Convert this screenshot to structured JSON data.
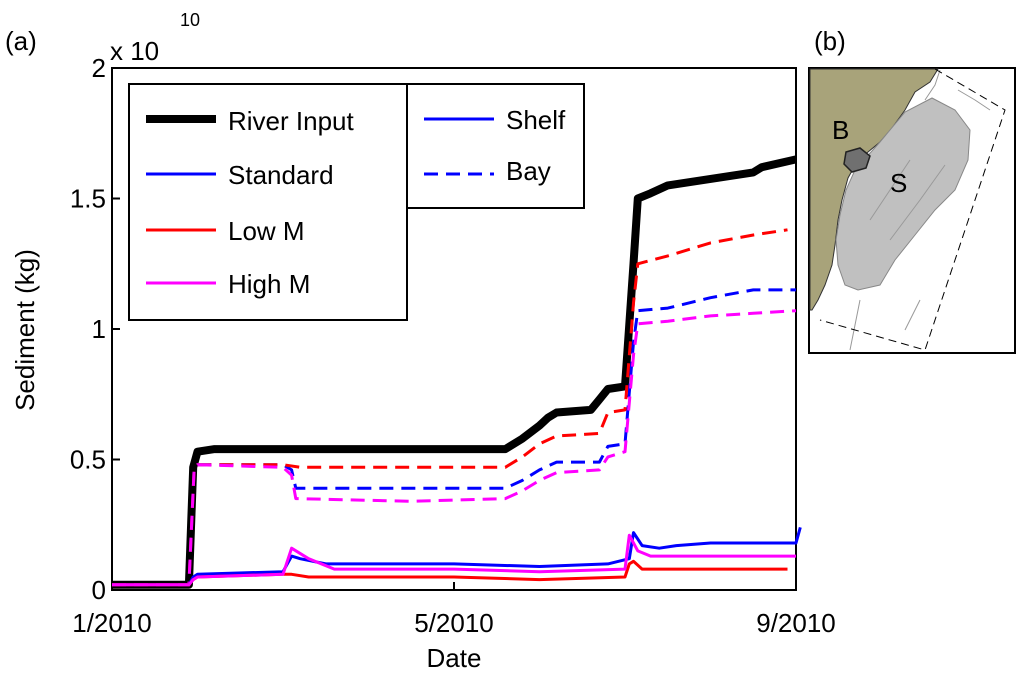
{
  "chart_data": [
    {
      "panel": "(a)",
      "type": "line",
      "title": "",
      "xlabel": "Date",
      "ylabel": "Sediment (kg)",
      "y_multiplier_text": "x 10",
      "y_multiplier_exponent": "10",
      "xlim": [
        0,
        8
      ],
      "ylim": [
        0,
        2
      ],
      "x_ticks": [
        {
          "value": 0,
          "label": "1/2010"
        },
        {
          "value": 4,
          "label": "5/2010"
        },
        {
          "value": 8,
          "label": "9/2010"
        }
      ],
      "y_ticks": [
        {
          "value": 0,
          "label": "0"
        },
        {
          "value": 0.5,
          "label": "0.5"
        },
        {
          "value": 1,
          "label": "1"
        },
        {
          "value": 1.5,
          "label": "1.5"
        },
        {
          "value": 2,
          "label": "2"
        }
      ],
      "x_unit_note": "months since 1 Jan 2010",
      "legend": {
        "placement": "top-left",
        "model_entries": [
          {
            "label": "River Input",
            "color": "#000000",
            "style": "thick-solid"
          },
          {
            "label": "Standard",
            "color": "#0000ff",
            "style": "solid"
          },
          {
            "label": "Low M",
            "color": "#ff0000",
            "style": "solid"
          },
          {
            "label": "High M",
            "color": "#ff00ff",
            "style": "solid"
          }
        ],
        "region_entries": [
          {
            "label": "Shelf",
            "color": "#0000ff",
            "style": "solid"
          },
          {
            "label": "Bay",
            "color": "#0000ff",
            "style": "dashed"
          }
        ]
      },
      "series": [
        {
          "name": "River Input",
          "color": "#000000",
          "style": "thick-solid",
          "points": [
            [
              0,
              0.02
            ],
            [
              0.9,
              0.02
            ],
            [
              0.95,
              0.47
            ],
            [
              1.0,
              0.53
            ],
            [
              1.2,
              0.54
            ],
            [
              4.6,
              0.54
            ],
            [
              4.8,
              0.58
            ],
            [
              5.0,
              0.63
            ],
            [
              5.1,
              0.66
            ],
            [
              5.2,
              0.68
            ],
            [
              5.6,
              0.69
            ],
            [
              5.7,
              0.73
            ],
            [
              5.8,
              0.77
            ],
            [
              6.0,
              0.78
            ],
            [
              6.1,
              1.25
            ],
            [
              6.15,
              1.5
            ],
            [
              6.3,
              1.52
            ],
            [
              6.5,
              1.55
            ],
            [
              7.5,
              1.6
            ],
            [
              7.6,
              1.62
            ],
            [
              8.0,
              1.65
            ]
          ]
        },
        {
          "name": "Standard Bay",
          "color": "#0000ff",
          "style": "dashed",
          "points": [
            [
              0,
              0.02
            ],
            [
              0.9,
              0.02
            ],
            [
              0.96,
              0.46
            ],
            [
              1.0,
              0.48
            ],
            [
              2.0,
              0.48
            ],
            [
              2.1,
              0.46
            ],
            [
              2.15,
              0.39
            ],
            [
              3.5,
              0.39
            ],
            [
              4.6,
              0.39
            ],
            [
              4.8,
              0.42
            ],
            [
              5.0,
              0.46
            ],
            [
              5.2,
              0.49
            ],
            [
              5.7,
              0.49
            ],
            [
              5.8,
              0.55
            ],
            [
              6.0,
              0.56
            ],
            [
              6.1,
              0.95
            ],
            [
              6.15,
              1.07
            ],
            [
              6.5,
              1.08
            ],
            [
              7.0,
              1.12
            ],
            [
              7.5,
              1.15
            ],
            [
              8.0,
              1.15
            ]
          ]
        },
        {
          "name": "Low M Bay",
          "color": "#ff0000",
          "style": "dashed",
          "points": [
            [
              0,
              0.02
            ],
            [
              0.9,
              0.02
            ],
            [
              0.96,
              0.46
            ],
            [
              1.0,
              0.48
            ],
            [
              2.0,
              0.48
            ],
            [
              2.2,
              0.47
            ],
            [
              4.6,
              0.47
            ],
            [
              4.8,
              0.51
            ],
            [
              5.0,
              0.56
            ],
            [
              5.2,
              0.59
            ],
            [
              5.7,
              0.6
            ],
            [
              5.8,
              0.68
            ],
            [
              6.0,
              0.69
            ],
            [
              6.1,
              1.1
            ],
            [
              6.15,
              1.25
            ],
            [
              6.5,
              1.28
            ],
            [
              7.0,
              1.33
            ],
            [
              7.5,
              1.36
            ],
            [
              7.9,
              1.38
            ]
          ]
        },
        {
          "name": "High M Bay",
          "color": "#ff00ff",
          "style": "dashed",
          "points": [
            [
              0,
              0.02
            ],
            [
              0.9,
              0.02
            ],
            [
              0.96,
              0.46
            ],
            [
              1.0,
              0.48
            ],
            [
              2.0,
              0.47
            ],
            [
              2.1,
              0.44
            ],
            [
              2.15,
              0.35
            ],
            [
              3.5,
              0.34
            ],
            [
              4.6,
              0.35
            ],
            [
              4.8,
              0.38
            ],
            [
              5.0,
              0.42
            ],
            [
              5.2,
              0.45
            ],
            [
              5.7,
              0.46
            ],
            [
              5.8,
              0.51
            ],
            [
              6.0,
              0.53
            ],
            [
              6.1,
              0.9
            ],
            [
              6.15,
              1.02
            ],
            [
              6.5,
              1.03
            ],
            [
              7.0,
              1.05
            ],
            [
              7.5,
              1.06
            ],
            [
              8.0,
              1.07
            ]
          ]
        },
        {
          "name": "Standard Shelf",
          "color": "#0000ff",
          "style": "solid",
          "points": [
            [
              0,
              0.02
            ],
            [
              0.9,
              0.02
            ],
            [
              0.95,
              0.05
            ],
            [
              1.0,
              0.06
            ],
            [
              2.0,
              0.07
            ],
            [
              2.1,
              0.13
            ],
            [
              2.2,
              0.12
            ],
            [
              2.5,
              0.1
            ],
            [
              3.0,
              0.1
            ],
            [
              4.0,
              0.1
            ],
            [
              5.0,
              0.09
            ],
            [
              5.8,
              0.1
            ],
            [
              6.05,
              0.12
            ],
            [
              6.1,
              0.22
            ],
            [
              6.2,
              0.17
            ],
            [
              6.4,
              0.16
            ],
            [
              6.6,
              0.17
            ],
            [
              7.0,
              0.18
            ],
            [
              8.0,
              0.18
            ],
            [
              8.05,
              0.24
            ]
          ]
        },
        {
          "name": "Low M Shelf",
          "color": "#ff0000",
          "style": "solid",
          "points": [
            [
              0,
              0.02
            ],
            [
              0.9,
              0.02
            ],
            [
              0.95,
              0.04
            ],
            [
              1.0,
              0.05
            ],
            [
              2.0,
              0.06
            ],
            [
              2.1,
              0.06
            ],
            [
              2.3,
              0.05
            ],
            [
              3.0,
              0.05
            ],
            [
              4.0,
              0.05
            ],
            [
              5.0,
              0.04
            ],
            [
              6.0,
              0.05
            ],
            [
              6.05,
              0.1
            ],
            [
              6.1,
              0.11
            ],
            [
              6.2,
              0.08
            ],
            [
              7.0,
              0.08
            ],
            [
              7.9,
              0.08
            ]
          ]
        },
        {
          "name": "High M Shelf",
          "color": "#ff00ff",
          "style": "solid",
          "points": [
            [
              0,
              0.02
            ],
            [
              0.9,
              0.02
            ],
            [
              0.95,
              0.04
            ],
            [
              1.0,
              0.05
            ],
            [
              2.0,
              0.06
            ],
            [
              2.1,
              0.16
            ],
            [
              2.3,
              0.12
            ],
            [
              2.6,
              0.08
            ],
            [
              3.0,
              0.08
            ],
            [
              4.0,
              0.08
            ],
            [
              5.0,
              0.07
            ],
            [
              6.0,
              0.08
            ],
            [
              6.05,
              0.21
            ],
            [
              6.15,
              0.15
            ],
            [
              6.3,
              0.13
            ],
            [
              7.0,
              0.13
            ],
            [
              8.0,
              0.13
            ]
          ]
        }
      ]
    },
    {
      "panel": "(b)",
      "type": "map",
      "labels": {
        "bay": "B",
        "shelf": "S"
      },
      "colors": {
        "land": "#a8a37a",
        "shelf_region": "#c0c0c0",
        "bay_region": "#707070"
      }
    }
  ]
}
